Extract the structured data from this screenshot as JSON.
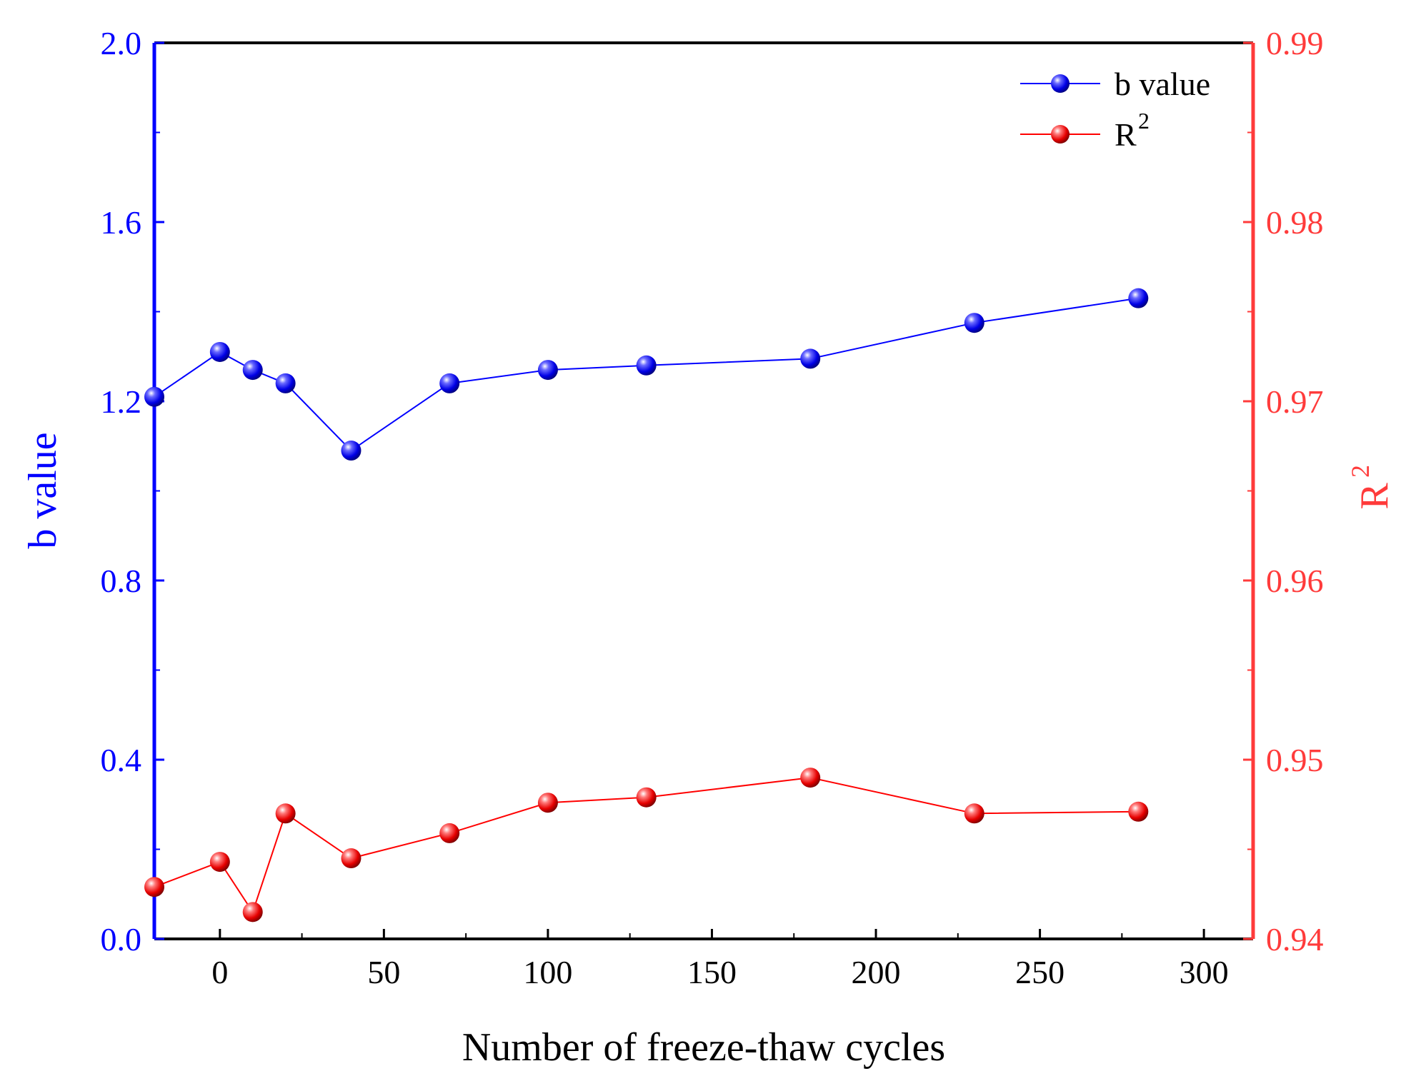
{
  "chart_data": {
    "type": "line",
    "xlabel": "Number of freeze-thaw cycles",
    "ylabel": "b value",
    "y2label_base": "R",
    "y2label_sup": "2",
    "xlim": [
      -20,
      315
    ],
    "ylim": [
      0.0,
      2.0
    ],
    "y2lim": [
      0.94,
      0.99
    ],
    "x_ticks": [
      0,
      50,
      100,
      150,
      200,
      250,
      300
    ],
    "y_ticks": [
      0.0,
      0.4,
      0.8,
      1.2,
      1.6,
      2.0
    ],
    "y_tick_labels": [
      "0.0",
      "0.4",
      "0.8",
      "1.2",
      "1.6",
      "2.0"
    ],
    "y2_ticks": [
      0.94,
      0.95,
      0.96,
      0.97,
      0.98,
      0.99
    ],
    "y2_tick_labels": [
      "0.94",
      "0.95",
      "0.96",
      "0.97",
      "0.98",
      "0.99"
    ],
    "x": [
      -20,
      0,
      10,
      20,
      40,
      70,
      100,
      130,
      180,
      230,
      280
    ],
    "series": [
      {
        "name": "b value",
        "axis": "left",
        "color": "#0000ff",
        "values": [
          1.21,
          1.31,
          1.27,
          1.24,
          1.09,
          1.24,
          1.27,
          1.28,
          1.295,
          1.375,
          1.43
        ]
      },
      {
        "name": "R2",
        "legend_base": "R",
        "legend_sup": "2",
        "axis": "right",
        "color": "#ff0000",
        "values": [
          0.9429,
          0.9443,
          0.9415,
          0.947,
          0.9445,
          0.9459,
          0.9476,
          0.9479,
          0.949,
          0.947,
          0.9471
        ]
      }
    ],
    "legend_position": "top-right",
    "grid": false
  }
}
